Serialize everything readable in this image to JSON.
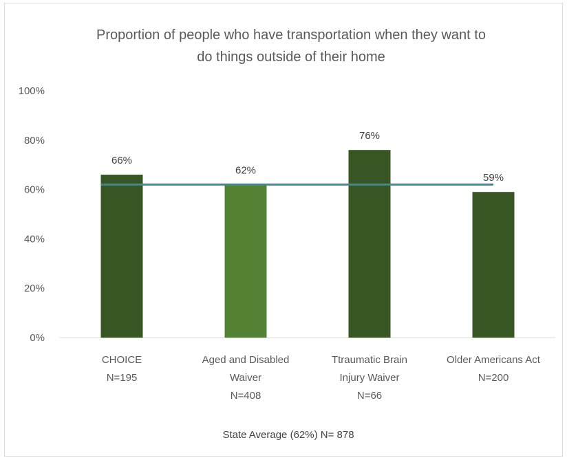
{
  "chart_data": {
    "type": "bar",
    "title": "Proportion of people who have transportation when they want to do things outside of their home",
    "title_lines": [
      "Proportion of people who have transportation when they want to",
      "do things outside of their home"
    ],
    "categories": [
      [
        "CHOICE",
        "N=195"
      ],
      [
        "Aged and Disabled",
        "Waiver",
        "N=408"
      ],
      [
        "Ttraumatic Brain",
        "Injury Waiver",
        "N=66"
      ],
      [
        "Older Americans Act",
        "N=200"
      ]
    ],
    "values": [
      66,
      62,
      76,
      59
    ],
    "data_labels": [
      "66%",
      "62%",
      "76%",
      "59%"
    ],
    "bar_colors": [
      "#375623",
      "#548235",
      "#375623",
      "#375623"
    ],
    "reference_line": {
      "name": "State Average (62%) N= 878",
      "value": 62,
      "color": "#3c8a96"
    },
    "ylim": [
      0,
      100
    ],
    "yticks": [
      0,
      20,
      40,
      60,
      80,
      100
    ],
    "ytick_labels": [
      "0%",
      "20%",
      "40%",
      "60%",
      "80%",
      "100%"
    ],
    "xlabel": "",
    "ylabel": "",
    "grid": false,
    "legend": "bottom"
  }
}
